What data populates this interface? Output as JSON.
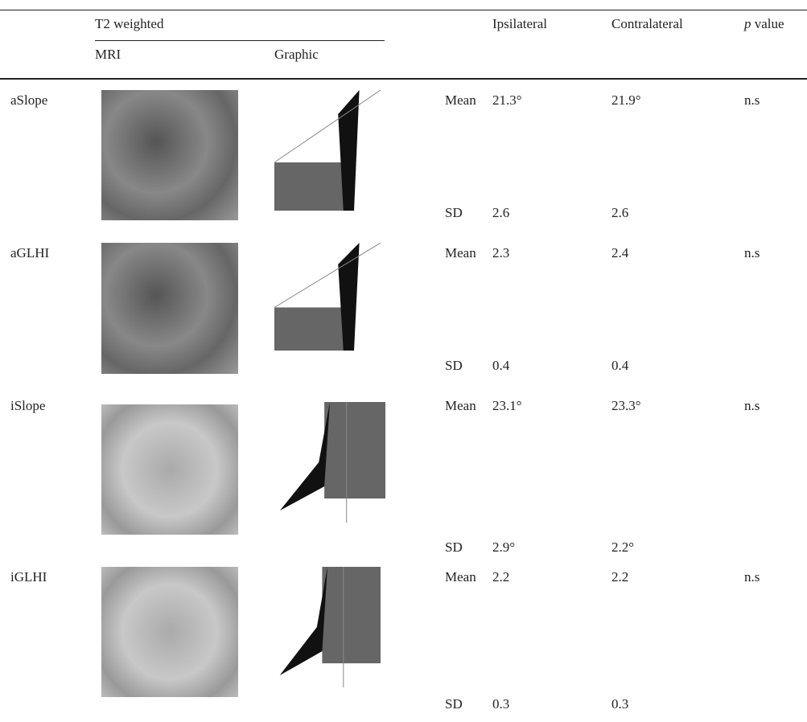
{
  "header": {
    "group": "T2 weighted",
    "mri": "MRI",
    "graphic": "Graphic",
    "ipsilateral": "Ipsilateral",
    "contralateral": "Contralateral",
    "p_value": [
      "p",
      "value"
    ]
  },
  "rows": [
    {
      "label": "aSlope",
      "mean": {
        "stat": "Mean",
        "ipsilateral": "21.3°",
        "contralateral": "21.9°",
        "p": "n.s"
      },
      "sd": {
        "stat": "SD",
        "ipsilateral": "2.6",
        "contralateral": "2.6"
      }
    },
    {
      "label": "aGLHI",
      "mean": {
        "stat": "Mean",
        "ipsilateral": "2.3",
        "contralateral": "2.4",
        "p": "n.s"
      },
      "sd": {
        "stat": "SD",
        "ipsilateral": "0.4",
        "contralateral": "0.4"
      }
    },
    {
      "label": "iSlope",
      "mean": {
        "stat": "Mean",
        "ipsilateral": "23.1°",
        "contralateral": "23.3°",
        "p": "n.s"
      },
      "sd": {
        "stat": "SD",
        "ipsilateral": "2.9°",
        "contralateral": "2.2°"
      }
    },
    {
      "label": "iGLHI",
      "mean": {
        "stat": "Mean",
        "ipsilateral": "2.2",
        "contralateral": "2.2",
        "p": "n.s"
      },
      "sd": {
        "stat": "SD",
        "ipsilateral": "0.3",
        "contralateral": "0.3"
      }
    }
  ]
}
